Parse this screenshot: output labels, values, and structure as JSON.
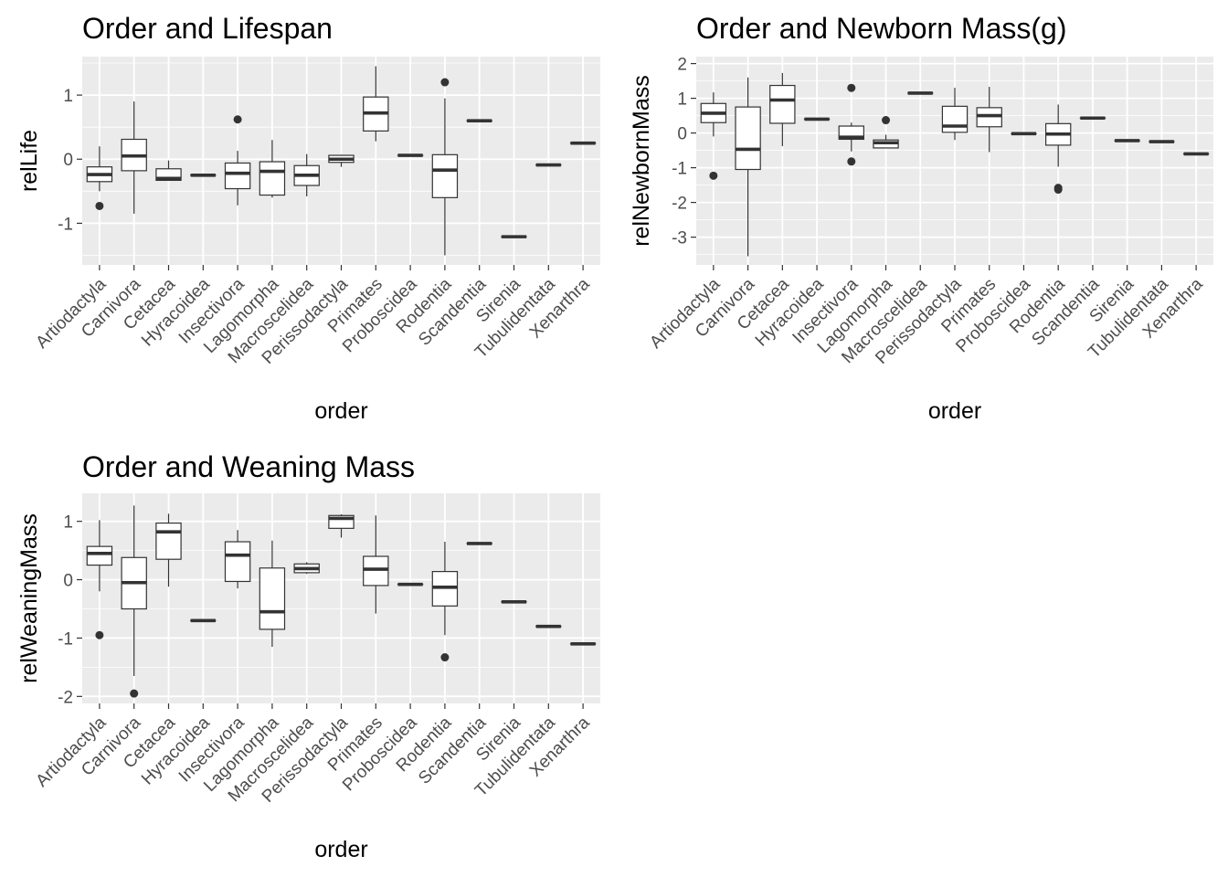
{
  "chart_data": [
    {
      "type": "box",
      "title": "Order and Lifespan",
      "xlabel": "order",
      "ylabel": "relLife",
      "ylim": [
        -1.65,
        1.6
      ],
      "yticks": [
        -1,
        0,
        1
      ],
      "categories": [
        "Artiodactyla",
        "Carnivora",
        "Cetacea",
        "Hyracoidea",
        "Insectivora",
        "Lagomorpha",
        "Macroscelidea",
        "Perissodactyla",
        "Primates",
        "Proboscidea",
        "Rodentia",
        "Scandentia",
        "Sirenia",
        "Tubulidentata",
        "Xenarthra"
      ],
      "boxes": [
        {
          "min": -0.5,
          "q1": -0.35,
          "median": -0.24,
          "q3": -0.12,
          "max": 0.2,
          "outliers": [
            -0.73
          ]
        },
        {
          "min": -0.85,
          "q1": -0.18,
          "median": 0.05,
          "q3": 0.31,
          "max": 0.9,
          "outliers": []
        },
        {
          "min": -0.33,
          "q1": -0.33,
          "median": -0.3,
          "q3": -0.15,
          "max": -0.02,
          "outliers": []
        },
        {
          "min": -0.25,
          "q1": -0.25,
          "median": -0.25,
          "q3": -0.25,
          "max": -0.25,
          "outliers": []
        },
        {
          "min": -0.72,
          "q1": -0.46,
          "median": -0.22,
          "q3": -0.06,
          "max": 0.13,
          "outliers": [
            0.62
          ]
        },
        {
          "min": -0.6,
          "q1": -0.56,
          "median": -0.19,
          "q3": -0.04,
          "max": 0.3,
          "outliers": []
        },
        {
          "min": -0.58,
          "q1": -0.41,
          "median": -0.25,
          "q3": -0.1,
          "max": 0.08,
          "outliers": []
        },
        {
          "min": -0.12,
          "q1": -0.05,
          "median": 0.0,
          "q3": 0.06,
          "max": 0.07,
          "outliers": []
        },
        {
          "min": 0.28,
          "q1": 0.44,
          "median": 0.72,
          "q3": 0.97,
          "max": 1.45,
          "outliers": []
        },
        {
          "min": 0.06,
          "q1": 0.06,
          "median": 0.06,
          "q3": 0.06,
          "max": 0.06,
          "outliers": []
        },
        {
          "min": -1.5,
          "q1": -0.6,
          "median": -0.17,
          "q3": 0.07,
          "max": 0.95,
          "outliers": [
            1.2
          ]
        },
        {
          "min": 0.6,
          "q1": 0.6,
          "median": 0.6,
          "q3": 0.6,
          "max": 0.6,
          "outliers": []
        },
        {
          "min": -1.21,
          "q1": -1.21,
          "median": -1.21,
          "q3": -1.21,
          "max": -1.21,
          "outliers": []
        },
        {
          "min": -0.09,
          "q1": -0.09,
          "median": -0.09,
          "q3": -0.09,
          "max": -0.09,
          "outliers": []
        },
        {
          "min": 0.25,
          "q1": 0.25,
          "median": 0.25,
          "q3": 0.25,
          "max": 0.25,
          "outliers": []
        }
      ]
    },
    {
      "type": "box",
      "title": "Order and Newborn Mass(g)",
      "xlabel": "order",
      "ylabel": "relNewbornMass",
      "ylim": [
        -3.8,
        2.2
      ],
      "yticks": [
        -3,
        -2,
        -1,
        0,
        1,
        2
      ],
      "categories": [
        "Artiodactyla",
        "Carnivora",
        "Cetacea",
        "Hyracoidea",
        "Insectivora",
        "Lagomorpha",
        "Macroscelidea",
        "Perissodactyla",
        "Primates",
        "Proboscidea",
        "Rodentia",
        "Scandentia",
        "Sirenia",
        "Tubulidentata",
        "Xenarthra"
      ],
      "boxes": [
        {
          "min": -0.1,
          "q1": 0.3,
          "median": 0.57,
          "q3": 0.85,
          "max": 1.17,
          "outliers": [
            -1.23
          ]
        },
        {
          "min": -3.55,
          "q1": -1.05,
          "median": -0.47,
          "q3": 0.75,
          "max": 1.6,
          "outliers": []
        },
        {
          "min": -0.38,
          "q1": 0.28,
          "median": 0.95,
          "q3": 1.37,
          "max": 1.73,
          "outliers": []
        },
        {
          "min": 0.4,
          "q1": 0.4,
          "median": 0.4,
          "q3": 0.4,
          "max": 0.4,
          "outliers": []
        },
        {
          "min": -0.53,
          "q1": -0.18,
          "median": -0.12,
          "q3": 0.2,
          "max": 0.3,
          "outliers": [
            1.3,
            -0.82
          ]
        },
        {
          "min": -0.43,
          "q1": -0.43,
          "median": -0.28,
          "q3": -0.2,
          "max": -0.05,
          "outliers": [
            0.37
          ]
        },
        {
          "min": 1.15,
          "q1": 1.15,
          "median": 1.15,
          "q3": 1.15,
          "max": 1.15,
          "outliers": []
        },
        {
          "min": -0.2,
          "q1": 0.02,
          "median": 0.2,
          "q3": 0.77,
          "max": 1.3,
          "outliers": []
        },
        {
          "min": -0.55,
          "q1": 0.18,
          "median": 0.5,
          "q3": 0.73,
          "max": 1.33,
          "outliers": []
        },
        {
          "min": -0.02,
          "q1": -0.02,
          "median": -0.02,
          "q3": -0.02,
          "max": -0.02,
          "outliers": []
        },
        {
          "min": -0.97,
          "q1": -0.35,
          "median": -0.03,
          "q3": 0.27,
          "max": 0.82,
          "outliers": [
            -1.58,
            -1.63
          ]
        },
        {
          "min": 0.43,
          "q1": 0.43,
          "median": 0.43,
          "q3": 0.43,
          "max": 0.43,
          "outliers": []
        },
        {
          "min": -0.22,
          "q1": -0.22,
          "median": -0.22,
          "q3": -0.22,
          "max": -0.22,
          "outliers": []
        },
        {
          "min": -0.25,
          "q1": -0.25,
          "median": -0.25,
          "q3": -0.25,
          "max": -0.25,
          "outliers": []
        },
        {
          "min": -0.6,
          "q1": -0.6,
          "median": -0.6,
          "q3": -0.6,
          "max": -0.6,
          "outliers": []
        }
      ]
    },
    {
      "type": "box",
      "title": "Order and Weaning Mass",
      "xlabel": "order",
      "ylabel": "relWeaningMass",
      "ylim": [
        -2.12,
        1.48
      ],
      "yticks": [
        -2,
        -1,
        0,
        1
      ],
      "categories": [
        "Artiodactyla",
        "Carnivora",
        "Cetacea",
        "Hyracoidea",
        "Insectivora",
        "Lagomorpha",
        "Macroscelidea",
        "Perissodactyla",
        "Primates",
        "Proboscidea",
        "Rodentia",
        "Scandentia",
        "Sirenia",
        "Tubulidentata",
        "Xenarthra"
      ],
      "boxes": [
        {
          "min": -0.2,
          "q1": 0.25,
          "median": 0.45,
          "q3": 0.57,
          "max": 1.02,
          "outliers": [
            -0.95
          ]
        },
        {
          "min": -1.65,
          "q1": -0.5,
          "median": -0.05,
          "q3": 0.38,
          "max": 1.27,
          "outliers": [
            -1.95
          ]
        },
        {
          "min": -0.12,
          "q1": 0.35,
          "median": 0.82,
          "q3": 0.97,
          "max": 1.13,
          "outliers": []
        },
        {
          "min": -0.7,
          "q1": -0.7,
          "median": -0.7,
          "q3": -0.7,
          "max": -0.7,
          "outliers": []
        },
        {
          "min": -0.15,
          "q1": -0.03,
          "median": 0.42,
          "q3": 0.65,
          "max": 0.85,
          "outliers": []
        },
        {
          "min": -1.15,
          "q1": -0.85,
          "median": -0.55,
          "q3": 0.2,
          "max": 0.67,
          "outliers": []
        },
        {
          "min": 0.1,
          "q1": 0.12,
          "median": 0.19,
          "q3": 0.27,
          "max": 0.3,
          "outliers": []
        },
        {
          "min": 0.72,
          "q1": 0.88,
          "median": 1.05,
          "q3": 1.1,
          "max": 1.12,
          "outliers": []
        },
        {
          "min": -0.58,
          "q1": -0.1,
          "median": 0.18,
          "q3": 0.4,
          "max": 1.1,
          "outliers": []
        },
        {
          "min": -0.08,
          "q1": -0.08,
          "median": -0.08,
          "q3": -0.08,
          "max": -0.08,
          "outliers": []
        },
        {
          "min": -0.95,
          "q1": -0.45,
          "median": -0.13,
          "q3": 0.14,
          "max": 0.65,
          "outliers": [
            -1.33
          ]
        },
        {
          "min": 0.62,
          "q1": 0.62,
          "median": 0.62,
          "q3": 0.62,
          "max": 0.62,
          "outliers": []
        },
        {
          "min": -0.38,
          "q1": -0.38,
          "median": -0.38,
          "q3": -0.38,
          "max": -0.38,
          "outliers": []
        },
        {
          "min": -0.8,
          "q1": -0.8,
          "median": -0.8,
          "q3": -0.8,
          "max": -0.8,
          "outliers": []
        },
        {
          "min": -1.1,
          "q1": -1.1,
          "median": -1.1,
          "q3": -1.1,
          "max": -1.1,
          "outliers": []
        }
      ]
    }
  ],
  "colors": {
    "panel_background": "#ebebeb",
    "grid": "#ffffff",
    "box_line": "#333333",
    "box_fill": "#ffffff",
    "tick_text": "#4d4d4d",
    "tick_mark": "#333333"
  }
}
